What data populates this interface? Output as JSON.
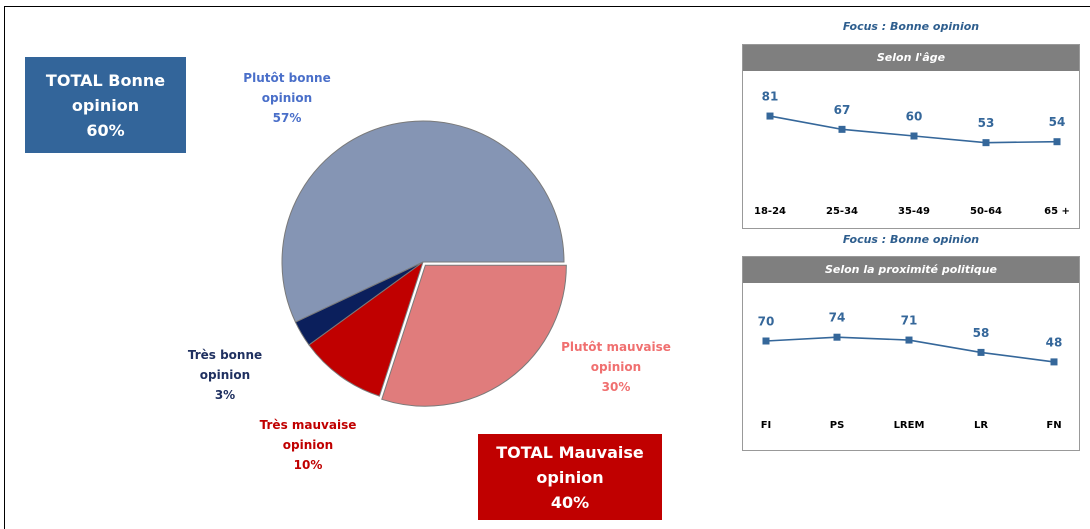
{
  "chart_data": [
    {
      "type": "pie",
      "categories": [
        "Plutôt mauvaise opinion",
        "Très mauvaise opinion",
        "Très bonne opinion",
        "Plutôt bonne opinion"
      ],
      "values": [
        30,
        10,
        3,
        57
      ],
      "value_labels": [
        "30%",
        "10%",
        "3%",
        "57%"
      ],
      "colors": [
        "#e07c7c",
        "#c00000",
        "#0b1f5c",
        "#8595b4"
      ],
      "label_colors": [
        "#f07070",
        "#c00000",
        "#1f3060",
        "#4a6fc9"
      ],
      "annotations": [
        {
          "text": "TOTAL Bonne opinion",
          "value_label": "60%",
          "color": "#33659a"
        },
        {
          "text": "TOTAL Mauvaise opinion",
          "value_label": "40%",
          "color": "#c00000"
        }
      ]
    },
    {
      "type": "line",
      "title": "Focus : Bonne opinion",
      "subtitle": "Selon l'âge",
      "categories": [
        "18-24",
        "25-34",
        "35-49",
        "50-64",
        "65 +"
      ],
      "values": [
        81,
        67,
        60,
        53,
        54
      ],
      "color": "#35679a"
    },
    {
      "type": "line",
      "title": "Focus : Bonne opinion",
      "subtitle": "Selon la proximité politique",
      "categories": [
        "FI",
        "PS",
        "LREM",
        "LR",
        "FN"
      ],
      "values": [
        70,
        74,
        71,
        58,
        48
      ],
      "color": "#35679a"
    }
  ]
}
